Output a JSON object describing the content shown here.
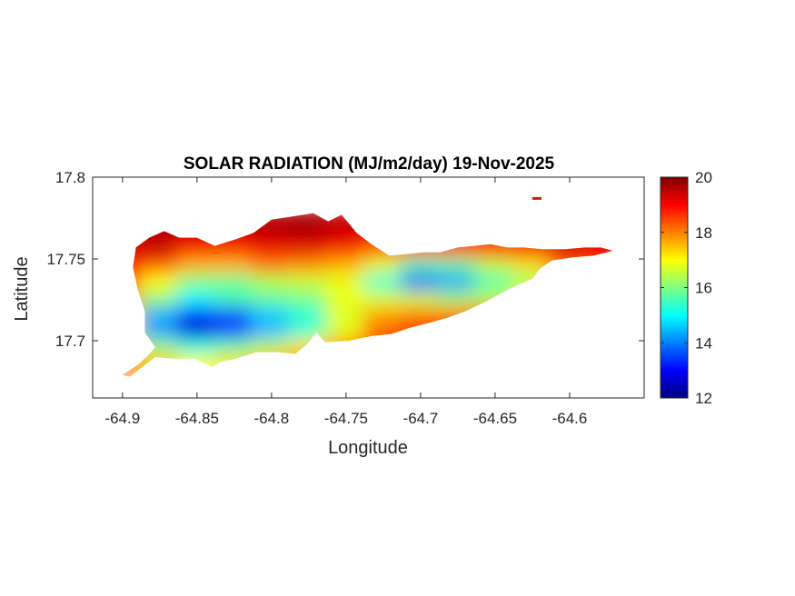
{
  "chart_data": {
    "type": "heatmap",
    "title": "SOLAR RADIATION (MJ/m2/day) 19-Nov-2025",
    "xlabel": "Longitude",
    "ylabel": "Latitude",
    "xlim": [
      -64.92,
      -64.55
    ],
    "ylim": [
      17.665,
      17.8
    ],
    "x_ticks": [
      -64.9,
      -64.85,
      -64.8,
      -64.75,
      -64.7,
      -64.65,
      -64.6
    ],
    "x_tick_labels": [
      "-64.9",
      "-64.85",
      "-64.8",
      "-64.75",
      "-64.7",
      "-64.65",
      "-64.6"
    ],
    "y_ticks": [
      17.7,
      17.75,
      17.8
    ],
    "y_tick_labels": [
      "17.7",
      "17.75",
      "17.8"
    ],
    "colorbar": {
      "min": 12,
      "max": 20,
      "ticks": [
        12,
        14,
        16,
        18,
        20
      ],
      "tick_labels": [
        "12",
        "14",
        "16",
        "18",
        "20"
      ],
      "colormap": "jet"
    },
    "grid": false,
    "region_outline": [
      [
        -64.9,
        17.679
      ],
      [
        -64.89,
        17.685
      ],
      [
        -64.884,
        17.69
      ],
      [
        -64.878,
        17.696
      ],
      [
        -64.885,
        17.705
      ],
      [
        -64.885,
        17.718
      ],
      [
        -64.89,
        17.732
      ],
      [
        -64.893,
        17.745
      ],
      [
        -64.891,
        17.757
      ],
      [
        -64.882,
        17.763
      ],
      [
        -64.872,
        17.767
      ],
      [
        -64.862,
        17.763
      ],
      [
        -64.85,
        17.763
      ],
      [
        -64.838,
        17.758
      ],
      [
        -64.824,
        17.762
      ],
      [
        -64.812,
        17.766
      ],
      [
        -64.8,
        17.774
      ],
      [
        -64.786,
        17.776
      ],
      [
        -64.772,
        17.778
      ],
      [
        -64.762,
        17.773
      ],
      [
        -64.753,
        17.777
      ],
      [
        -64.743,
        17.766
      ],
      [
        -64.733,
        17.759
      ],
      [
        -64.721,
        17.752
      ],
      [
        -64.709,
        17.753
      ],
      [
        -64.698,
        17.754
      ],
      [
        -64.687,
        17.754
      ],
      [
        -64.675,
        17.757
      ],
      [
        -64.664,
        17.758
      ],
      [
        -64.653,
        17.759
      ],
      [
        -64.642,
        17.757
      ],
      [
        -64.631,
        17.757
      ],
      [
        -64.618,
        17.756
      ],
      [
        -64.603,
        17.756
      ],
      [
        -64.59,
        17.757
      ],
      [
        -64.579,
        17.757
      ],
      [
        -64.571,
        17.755
      ],
      [
        -64.584,
        17.752
      ],
      [
        -64.598,
        17.751
      ],
      [
        -64.612,
        17.749
      ],
      [
        -64.62,
        17.744
      ],
      [
        -64.625,
        17.738
      ],
      [
        -64.64,
        17.732
      ],
      [
        -64.656,
        17.724
      ],
      [
        -64.67,
        17.718
      ],
      [
        -64.682,
        17.714
      ],
      [
        -64.694,
        17.711
      ],
      [
        -64.707,
        17.708
      ],
      [
        -64.72,
        17.704
      ],
      [
        -64.732,
        17.703
      ],
      [
        -64.748,
        17.7
      ],
      [
        -64.764,
        17.699
      ],
      [
        -64.77,
        17.705
      ],
      [
        -64.776,
        17.698
      ],
      [
        -64.784,
        17.692
      ],
      [
        -64.796,
        17.693
      ],
      [
        -64.81,
        17.693
      ],
      [
        -64.824,
        17.689
      ],
      [
        -64.834,
        17.687
      ],
      [
        -64.84,
        17.684
      ],
      [
        -64.852,
        17.689
      ],
      [
        -64.866,
        17.689
      ],
      [
        -64.878,
        17.69
      ],
      [
        -64.895,
        17.678
      ]
    ],
    "values_grid": {
      "lon": [
        -64.9,
        -64.875,
        -64.85,
        -64.825,
        -64.8,
        -64.775,
        -64.75,
        -64.725,
        -64.7,
        -64.675,
        -64.65,
        -64.625,
        -64.6,
        -64.575
      ],
      "lat": [
        17.775,
        17.765,
        17.755,
        17.745,
        17.735,
        17.725,
        17.715,
        17.705,
        17.695,
        17.685
      ],
      "values": [
        [
          19.5,
          19.5,
          19.5,
          19.5,
          19.6,
          19.7,
          19.4,
          19.3,
          19,
          18.8,
          18.9,
          19,
          19,
          18.9
        ],
        [
          19.5,
          19.6,
          19.4,
          19.3,
          19.5,
          19.6,
          19.4,
          19,
          18.8,
          18.8,
          18.9,
          19,
          19.2,
          19
        ],
        [
          19.3,
          19.4,
          19,
          18.8,
          19.1,
          19.2,
          18.9,
          18.4,
          18.6,
          18.6,
          18.8,
          19.1,
          19.3,
          19.1
        ],
        [
          18.9,
          18.4,
          17.6,
          17.6,
          18.1,
          17.9,
          17.6,
          16.8,
          15.5,
          15.7,
          16.5,
          17.2,
          18.3,
          18.6
        ],
        [
          18.4,
          17,
          16,
          15.8,
          16.4,
          16.6,
          16.8,
          15.3,
          13.5,
          14.2,
          15.6,
          16.2,
          17.6,
          18.2
        ],
        [
          17.9,
          16.2,
          15,
          15.6,
          15.8,
          16,
          16.9,
          16.7,
          16.6,
          16.2,
          16.4,
          17,
          17.8,
          18.2
        ],
        [
          17.6,
          14.4,
          13,
          13.6,
          14.6,
          15.3,
          16.7,
          17.7,
          18,
          18,
          18.3,
          18.6,
          18.6,
          18.6
        ],
        [
          17.2,
          14.2,
          12.6,
          13.4,
          14.4,
          15.4,
          16.8,
          18.2,
          18.6,
          18.8,
          18.8,
          18.8,
          18.8,
          18.8
        ],
        [
          17.5,
          16.2,
          15.2,
          15.8,
          16.5,
          17.2,
          17.8,
          18.4,
          18.8,
          18.8,
          18.8,
          18.8,
          18.8,
          18.8
        ],
        [
          18.2,
          17.4,
          17,
          17.2,
          17.6,
          18,
          18.4,
          18.6,
          18.8,
          18.8,
          18.8,
          18.8,
          18.8,
          18.8
        ]
      ]
    },
    "annotations": [
      {
        "label": "",
        "lon": -64.622,
        "lat": 17.787
      }
    ]
  }
}
